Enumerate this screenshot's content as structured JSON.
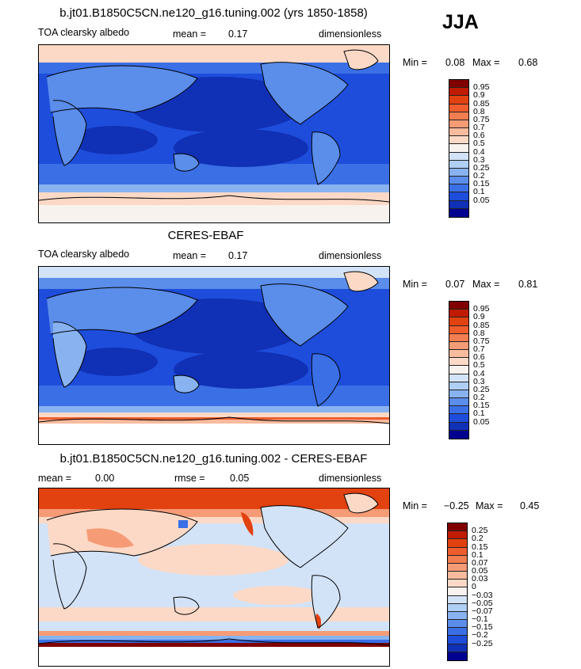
{
  "season": "JJA",
  "panels": [
    {
      "id": "model",
      "title": "b.jt01.B1850C5CN.ne120_g16.tuning.002 (yrs 1850-1858)",
      "variable": "TOA clearsky albedo",
      "left_label": "mean =",
      "left_value": "0.17",
      "mid_label": "",
      "mid_value": "",
      "units": "dimensionless",
      "min_label": "Min =",
      "min_value": "0.08",
      "max_label": "Max =",
      "max_value": "0.68",
      "colorbar": {
        "colors": [
          "#800000",
          "#c01a00",
          "#e24110",
          "#ef5d2c",
          "#f27d50",
          "#f59b76",
          "#f9bb9e",
          "#fcd9c6",
          "#f7f2ee",
          "#d2e3f8",
          "#b0cff5",
          "#88b3f0",
          "#5b8dea",
          "#3a6fe6",
          "#1e4ddb",
          "#1030b5",
          "#000090"
        ],
        "labels": [
          "0.95",
          "0.9",
          "0.85",
          "0.8",
          "0.75",
          "0.7",
          "0.6",
          "0.5",
          "0.4",
          "0.3",
          "0.25",
          "0.2",
          "0.15",
          "0.1",
          "0.05"
        ]
      }
    },
    {
      "id": "obs",
      "title": "CERES-EBAF",
      "variable": "TOA clearsky albedo",
      "left_label": "mean =",
      "left_value": "0.17",
      "mid_label": "",
      "mid_value": "",
      "units": "dimensionless",
      "min_label": "Min =",
      "min_value": "0.07",
      "max_label": "Max =",
      "max_value": "0.81",
      "colorbar": {
        "colors": [
          "#800000",
          "#c01a00",
          "#e24110",
          "#ef5d2c",
          "#f27d50",
          "#f59b76",
          "#f9bb9e",
          "#fcd9c6",
          "#f7f2ee",
          "#d2e3f8",
          "#b0cff5",
          "#88b3f0",
          "#5b8dea",
          "#3a6fe6",
          "#1e4ddb",
          "#1030b5",
          "#000090"
        ],
        "labels": [
          "0.95",
          "0.9",
          "0.85",
          "0.8",
          "0.75",
          "0.7",
          "0.6",
          "0.5",
          "0.4",
          "0.3",
          "0.25",
          "0.2",
          "0.15",
          "0.1",
          "0.05"
        ]
      }
    },
    {
      "id": "diff",
      "title": "b.jt01.B1850C5CN.ne120_g16.tuning.002 - CERES-EBAF",
      "variable": "",
      "left_label": "mean =",
      "left_value": "0.00",
      "mid_label": "rmse =",
      "mid_value": "0.05",
      "units": "dimensionless",
      "min_label": "Min =",
      "min_value": "−0.25",
      "max_label": "Max =",
      "max_value": "0.45",
      "colorbar": {
        "colors": [
          "#800000",
          "#c01a00",
          "#e24110",
          "#ef5d2c",
          "#f27d50",
          "#f59b76",
          "#f9bb9e",
          "#fcd9c6",
          "#f7f2ee",
          "#d2e3f8",
          "#b0cff5",
          "#88b3f0",
          "#5b8dea",
          "#3a6fe6",
          "#1e4ddb",
          "#1030b5",
          "#000090"
        ],
        "labels": [
          "0.25",
          "0.2",
          "0.15",
          "0.1",
          "0.07",
          "0.05",
          "0.03",
          "0",
          "−0.03",
          "−0.05",
          "−0.07",
          "−0.1",
          "−0.15",
          "−0.2",
          "−0.25"
        ]
      }
    }
  ]
}
